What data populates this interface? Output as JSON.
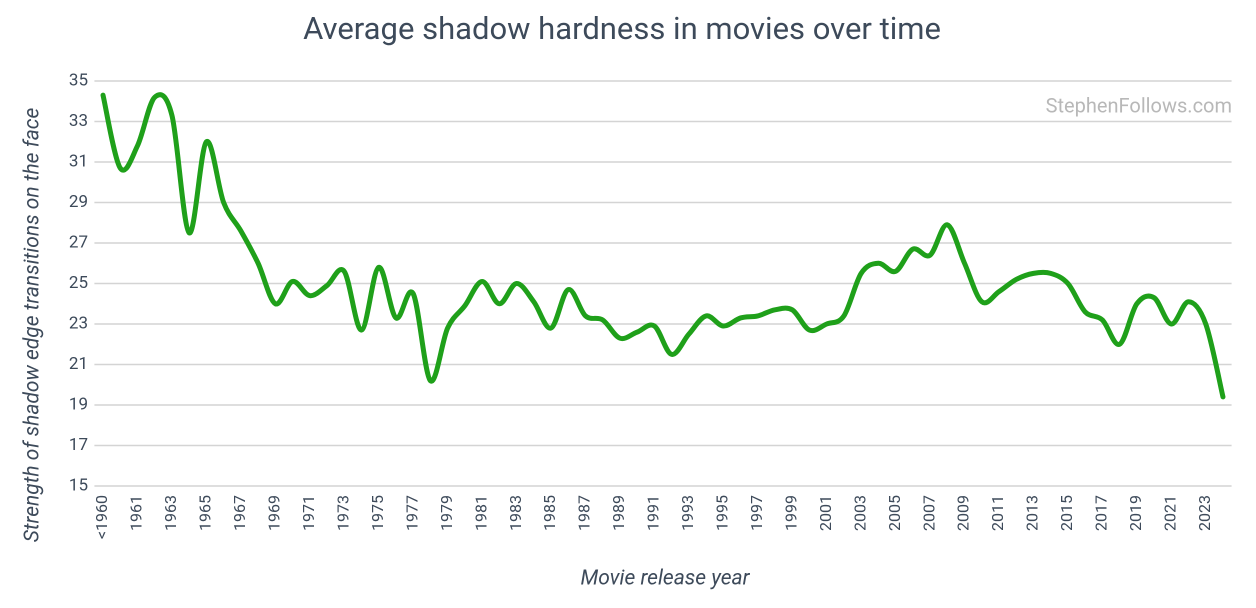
{
  "chart_data": {
    "type": "line",
    "title": "Average shadow hardness in movies over time",
    "x_label": "Movie release year",
    "y_label": "Strength of shadow edge transitions on the face",
    "annotation": "StephenFollows.com",
    "categories": [
      "<1960",
      null,
      "1961",
      null,
      "1963",
      null,
      "1965",
      null,
      "1967",
      null,
      "1969",
      null,
      "1971",
      null,
      "1973",
      null,
      "1975",
      null,
      "1977",
      null,
      "1979",
      null,
      "1981",
      null,
      "1983",
      null,
      "1985",
      null,
      "1987",
      null,
      "1989",
      null,
      "1991",
      null,
      "1993",
      null,
      "1995",
      null,
      "1997",
      null,
      "1999",
      null,
      "2001",
      null,
      "2003",
      null,
      "2005",
      null,
      "2007",
      null,
      "2009",
      null,
      "2011",
      null,
      "2013",
      null,
      "2015",
      null,
      "2017",
      null,
      "2019",
      null,
      "2021",
      null,
      "2023",
      null
    ],
    "series": [
      {
        "name": "Average shadow hardness",
        "color": "#1fa01a",
        "values": [
          34.3,
          30.7,
          31.8,
          34.2,
          33.3,
          27.5,
          32.0,
          29.0,
          27.6,
          26.0,
          24.0,
          25.1,
          24.4,
          24.9,
          25.6,
          22.7,
          25.8,
          23.3,
          24.5,
          20.2,
          22.8,
          23.9,
          25.1,
          24.0,
          25.0,
          24.1,
          22.8,
          24.7,
          23.4,
          23.2,
          22.3,
          22.6,
          22.9,
          21.5,
          22.5,
          23.4,
          22.9,
          23.3,
          23.4,
          23.7,
          23.7,
          22.7,
          23.0,
          23.4,
          25.5,
          26.0,
          25.6,
          26.7,
          26.4,
          27.9,
          26.0,
          24.1,
          24.6,
          25.2,
          25.5,
          25.5,
          25.0,
          23.6,
          23.2,
          22.0,
          24.0,
          24.3,
          23.0,
          24.1,
          23.0,
          19.4
        ]
      }
    ],
    "ylim": [
      15,
      35
    ],
    "yticks": [
      15,
      17,
      19,
      21,
      23,
      25,
      27,
      29,
      31,
      33,
      35
    ],
    "grid": true
  }
}
